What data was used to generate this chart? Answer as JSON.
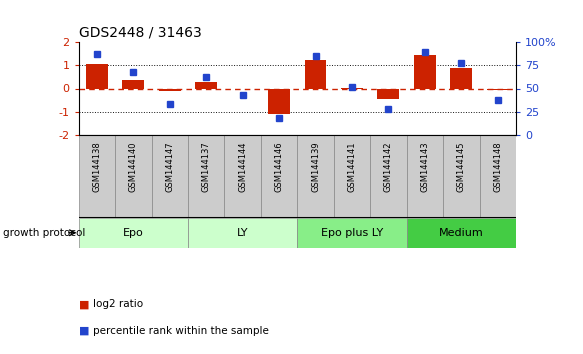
{
  "title": "GDS2448 / 31463",
  "samples": [
    "GSM144138",
    "GSM144140",
    "GSM144147",
    "GSM144137",
    "GSM144144",
    "GSM144146",
    "GSM144139",
    "GSM144141",
    "GSM144142",
    "GSM144143",
    "GSM144145",
    "GSM144148"
  ],
  "log2_ratio": [
    1.05,
    0.38,
    -0.12,
    0.28,
    -0.04,
    -1.12,
    1.25,
    0.04,
    -0.45,
    1.45,
    0.88,
    -0.08
  ],
  "percentile_rank": [
    88,
    68,
    33,
    63,
    43,
    18,
    85,
    52,
    28,
    90,
    78,
    37
  ],
  "groups": [
    {
      "label": "Epo",
      "start": 0,
      "end": 3,
      "color": "#ccffcc"
    },
    {
      "label": "LY",
      "start": 3,
      "end": 6,
      "color": "#ccffcc"
    },
    {
      "label": "Epo plus LY",
      "start": 6,
      "end": 9,
      "color": "#88ee88"
    },
    {
      "label": "Medium",
      "start": 9,
      "end": 12,
      "color": "#44cc44"
    }
  ],
  "ylim": [
    -2,
    2
  ],
  "yticks_left": [
    -2,
    -1,
    0,
    1,
    2
  ],
  "yticks_right": [
    0,
    25,
    50,
    75,
    100
  ],
  "bar_color": "#cc2200",
  "dot_color": "#2244cc",
  "hline_color": "#cc2200",
  "dotted_color": "#111111",
  "legend_bar_label": "log2 ratio",
  "legend_dot_label": "percentile rank within the sample",
  "group_protocol_label": "growth protocol",
  "sample_cell_color": "#cccccc",
  "sample_cell_edge": "#888888"
}
